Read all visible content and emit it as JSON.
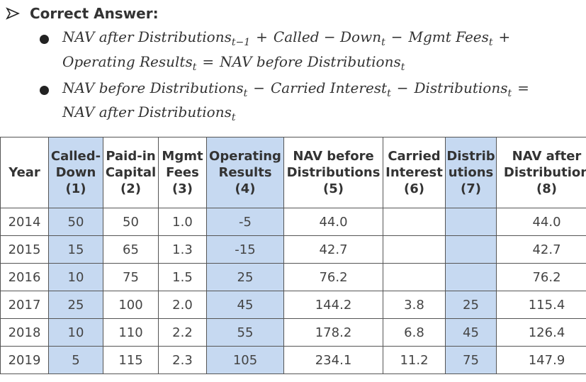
{
  "header": {
    "title": "Correct Answer:"
  },
  "bullets": [
    {
      "lines": [
        [
          {
            "term": "NAV after Distributions",
            "sub": "t−1"
          },
          "+",
          {
            "term": "Called − Down",
            "sub": "t"
          },
          "−",
          {
            "term": "Mgmt Fees",
            "sub": "t"
          },
          "+"
        ],
        [
          {
            "term": "Operating Results",
            "sub": "t"
          },
          "=",
          {
            "term": "NAV before Distributions",
            "sub": "t"
          }
        ]
      ]
    },
    {
      "lines": [
        [
          {
            "term": "NAV before Distributions",
            "sub": "t"
          },
          "−",
          {
            "term": "Carried Interest",
            "sub": "t"
          },
          "−",
          {
            "term": "Distributions",
            "sub": "t"
          },
          "="
        ],
        [
          {
            "term": "NAV after Distributions",
            "sub": "t"
          }
        ]
      ]
    }
  ],
  "table": {
    "highlight_columns": [
      1,
      4,
      7
    ],
    "columns": [
      [
        "Year"
      ],
      [
        "Called-",
        "Down",
        "(1)"
      ],
      [
        "Paid-in",
        "Capital",
        "(2)"
      ],
      [
        "Mgmt",
        "Fees",
        "(3)"
      ],
      [
        "Operating",
        "Results",
        "(4)"
      ],
      [
        "NAV before",
        "Distributions",
        "(5)"
      ],
      [
        "Carried",
        "Interest",
        "(6)"
      ],
      [
        "Distrib",
        "utions",
        "(7)"
      ],
      [
        "NAV after",
        "Distribution",
        "(8)"
      ]
    ],
    "rows": [
      [
        "2014",
        "50",
        "50",
        "1.0",
        "-5",
        "44.0",
        null,
        null,
        "44.0"
      ],
      [
        "2015",
        "15",
        "65",
        "1.3",
        "-15",
        "42.7",
        null,
        null,
        "42.7"
      ],
      [
        "2016",
        "10",
        "75",
        "1.5",
        "25",
        "76.2",
        null,
        null,
        "76.2"
      ],
      [
        "2017",
        "25",
        "100",
        "2.0",
        "45",
        "144.2",
        "3.8",
        "25",
        "115.4"
      ],
      [
        "2018",
        "10",
        "110",
        "2.2",
        "55",
        "178.2",
        "6.8",
        "45",
        "126.4"
      ],
      [
        "2019",
        "5",
        "115",
        "2.3",
        "105",
        "234.1",
        "11.2",
        "75",
        "147.9"
      ]
    ]
  }
}
